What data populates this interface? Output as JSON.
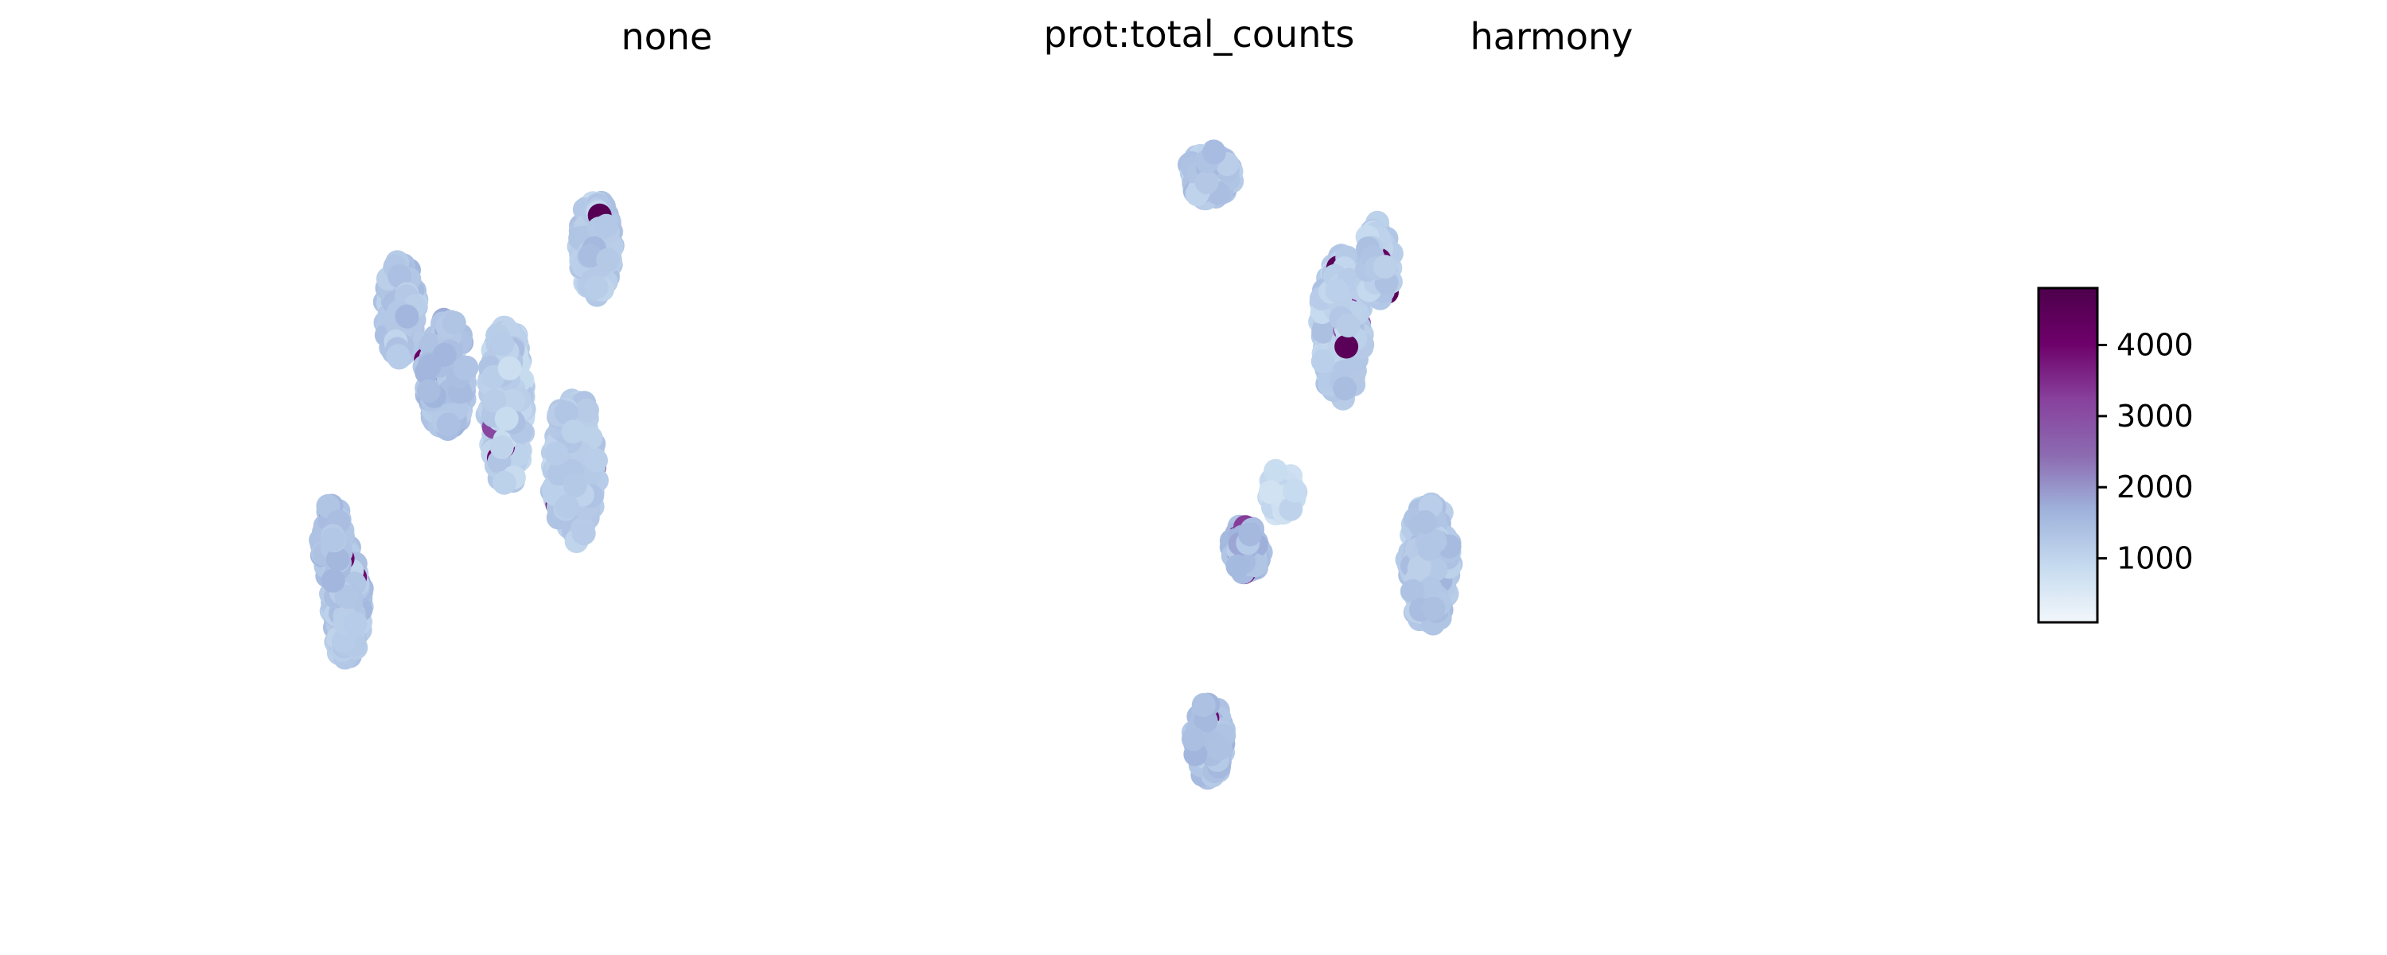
{
  "panels": [
    {
      "title": "none"
    },
    {
      "title": "prot:total_counts"
    },
    {
      "title": "harmony"
    }
  ],
  "colorbar": {
    "colormap": [
      "#f2f7fb",
      "#c6dbef",
      "#9fb3dc",
      "#8c6bb1",
      "#88419d",
      "#6e016b",
      "#4d004b"
    ],
    "vmin": 100,
    "vmax": 4800,
    "ticks": [
      {
        "value": 1000,
        "label": "1000"
      },
      {
        "value": 2000,
        "label": "2000"
      },
      {
        "value": 3000,
        "label": "3000"
      },
      {
        "value": 4000,
        "label": "4000"
      }
    ]
  },
  "chart_data": {
    "type": "scatter",
    "title": "prot:total_counts",
    "color_variable": "prot:total_counts",
    "color_range": [
      100,
      4800
    ],
    "grid": false,
    "legend": "colorbar-right",
    "panels": [
      {
        "title": "none",
        "clusters": [
          {
            "cx": 0.123,
            "cy": 0.72,
            "rx": 0.022,
            "ry": 0.06,
            "n": 150,
            "mean": 1300
          },
          {
            "cx": 0.268,
            "cy": 0.6,
            "rx": 0.025,
            "ry": 0.1,
            "n": 220,
            "mean": 1150
          },
          {
            "cx": 0.36,
            "cy": 0.52,
            "rx": 0.03,
            "ry": 0.09,
            "n": 160,
            "mean": 1200
          },
          {
            "cx": 0.39,
            "cy": 0.8,
            "rx": 0.024,
            "ry": 0.06,
            "n": 130,
            "mean": 1250
          },
          {
            "cx": 0.185,
            "cy": 0.64,
            "rx": 0.03,
            "ry": 0.07,
            "n": 160,
            "mean": 1400
          },
          {
            "cx": 0.05,
            "cy": 0.35,
            "rx": 0.022,
            "ry": 0.07,
            "n": 130,
            "mean": 1300
          },
          {
            "cx": 0.03,
            "cy": 0.43,
            "rx": 0.016,
            "ry": 0.05,
            "n": 60,
            "mean": 1350
          }
        ]
      },
      {
        "title": "harmony",
        "clusters": [
          {
            "cx": 0.0,
            "cy": 0.89,
            "rx": 0.03,
            "ry": 0.03,
            "n": 140,
            "mean": 1300
          },
          {
            "cx": 0.18,
            "cy": 0.7,
            "rx": 0.03,
            "ry": 0.09,
            "n": 230,
            "mean": 1150
          },
          {
            "cx": 0.23,
            "cy": 0.78,
            "rx": 0.02,
            "ry": 0.05,
            "n": 70,
            "mean": 1200
          },
          {
            "cx": 0.1,
            "cy": 0.49,
            "rx": 0.02,
            "ry": 0.03,
            "n": 50,
            "mean": 850
          },
          {
            "cx": 0.05,
            "cy": 0.42,
            "rx": 0.02,
            "ry": 0.03,
            "n": 90,
            "mean": 1500
          },
          {
            "cx": 0.3,
            "cy": 0.4,
            "rx": 0.03,
            "ry": 0.08,
            "n": 170,
            "mean": 1250
          },
          {
            "cx": 0.0,
            "cy": 0.18,
            "rx": 0.022,
            "ry": 0.05,
            "n": 110,
            "mean": 1400
          }
        ]
      }
    ]
  }
}
